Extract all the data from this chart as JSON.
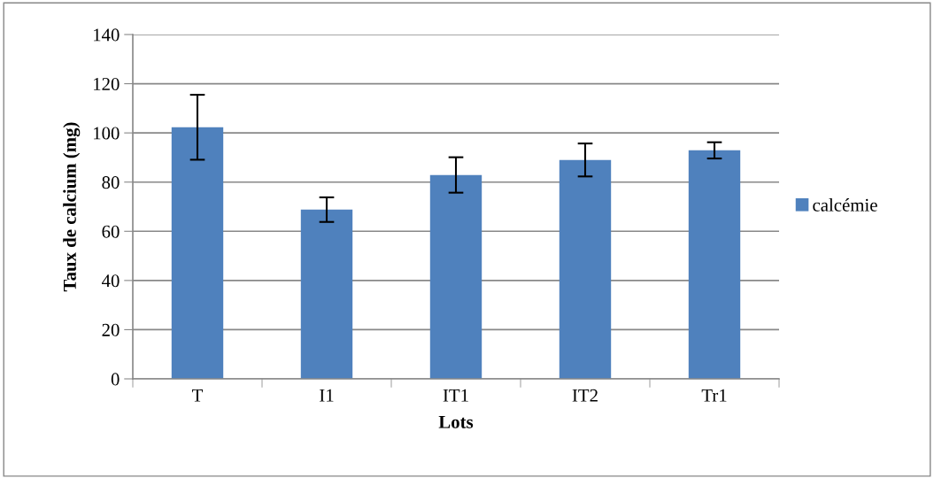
{
  "chart_data": {
    "type": "bar",
    "xlabel": "Lots",
    "ylabel": "Taux de calcium (mg)",
    "categories": [
      "T",
      "I1",
      "IT1",
      "IT2",
      "Tr1"
    ],
    "series": [
      {
        "name": "calcémie",
        "color": "#4f81bd",
        "values": [
          102.3,
          68.8,
          82.9,
          89.0,
          92.9
        ],
        "errors": [
          13.2,
          5.0,
          7.2,
          6.7,
          3.3
        ]
      }
    ],
    "ylim": [
      0,
      140
    ],
    "yticks": [
      0,
      20,
      40,
      60,
      80,
      100,
      120,
      140
    ],
    "grid": "y",
    "legend": "right"
  }
}
